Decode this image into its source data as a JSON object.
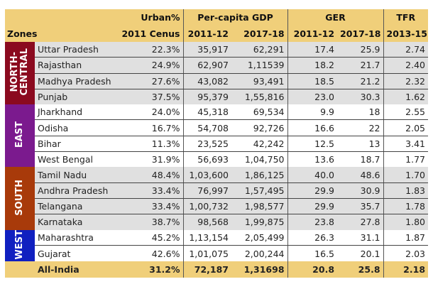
{
  "header": {
    "zones": "Zones",
    "urban": "Urban%",
    "urban_sub": "2011 Cenus",
    "gdp": "Per-capita GDP",
    "gdp_sub1": "2011-12",
    "gdp_sub2": "2017-18",
    "ger": "GER",
    "ger_sub1": "2011-12",
    "ger_sub2": "2017-18",
    "tfr": "TFR",
    "tfr_sub": "2013-15"
  },
  "zones": [
    {
      "name": "NORTH-\nCENTRAL",
      "color": "#8b0a1f",
      "shade": "gray",
      "rows": [
        [
          "Uttar Pradesh",
          "22.3%",
          "35,917",
          "62,291",
          "17.4",
          "25.9",
          "2.74"
        ],
        [
          "Rajasthan",
          "24.9%",
          "62,907",
          "1,11539",
          "18.2",
          "21.7",
          "2.40"
        ],
        [
          "Madhya Pradesh",
          "27.6%",
          "43,082",
          "93,491",
          "18.5",
          "21.2",
          "2.32"
        ],
        [
          "Punjab",
          "37.5%",
          "95,379",
          "1,55,816",
          "23.0",
          "30.3",
          "1.62"
        ]
      ]
    },
    {
      "name": "EAST",
      "color": "#7b1a8e",
      "shade": "white",
      "rows": [
        [
          "Jharkhand",
          "24.0%",
          "45,318",
          "69,534",
          "9.9",
          "18",
          "2.55"
        ],
        [
          "Odisha",
          "16.7%",
          "54,708",
          "92,726",
          "16.6",
          "22",
          "2.05"
        ],
        [
          "Bihar",
          "11.3%",
          "23,525",
          "42,242",
          "12.5",
          "13",
          "3.41"
        ],
        [
          "West Bengal",
          "31.9%",
          "56,693",
          "1,04,750",
          "13.6",
          "18.7",
          "1.77"
        ]
      ]
    },
    {
      "name": "SOUTH",
      "color": "#a83a0a",
      "shade": "gray",
      "rows": [
        [
          "Tamil Nadu",
          "48.4%",
          "1,03,600",
          "1,86,125",
          "40.0",
          "48.6",
          "1.70"
        ],
        [
          "Andhra Pradesh",
          "33.4%",
          "76,997",
          "1,57,495",
          "29.9",
          "30.9",
          "1.83"
        ],
        [
          "Telangana",
          "33.4%",
          "1,00,732",
          "1,98,577",
          "29.9",
          "35.7",
          "1.78"
        ],
        [
          "Karnataka",
          "38.7%",
          "98,568",
          "1,99,875",
          "23.8",
          "27.8",
          "1.80"
        ]
      ]
    },
    {
      "name": "WEST",
      "color": "#1020c0",
      "shade": "white",
      "rows": [
        [
          "Maharashtra",
          "45.2%",
          "1,13,154",
          "2,05,499",
          "26.3",
          "31.1",
          "1.87"
        ],
        [
          "Gujarat",
          "42.6%",
          "1,01,075",
          "2,00,244",
          "16.5",
          "20.1",
          "2.03"
        ]
      ]
    }
  ],
  "total": [
    "All-India",
    "31.2%",
    "72,187",
    "1,31698",
    "20.8",
    "25.8",
    "2.18"
  ]
}
